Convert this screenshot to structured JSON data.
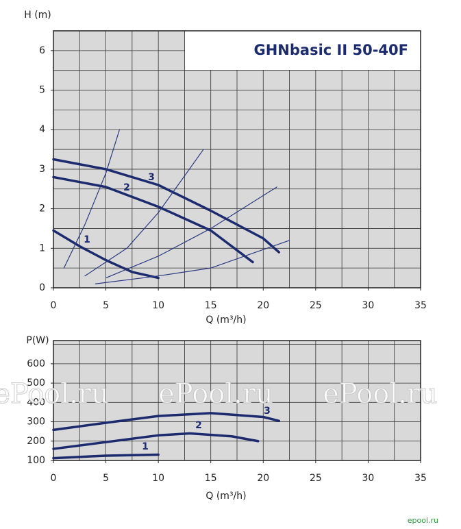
{
  "chart_data": [
    {
      "type": "line",
      "title": "GHNbasic II 50-40F",
      "x_label": "Q (m³/h)",
      "y_label": "H (m)",
      "xlim": [
        0,
        35
      ],
      "ylim": [
        0,
        6.5
      ],
      "xticks": [
        0,
        5,
        10,
        15,
        20,
        25,
        30,
        35
      ],
      "yticks": [
        0,
        1,
        2,
        3,
        4,
        5,
        6
      ],
      "grid": true,
      "xgrid": [
        0,
        2.5,
        5,
        7.5,
        10,
        12.5,
        15,
        17.5,
        20,
        22.5,
        25,
        27.5,
        30,
        32.5,
        35
      ],
      "ygrid": [
        0,
        0.5,
        1,
        1.5,
        2,
        2.5,
        3,
        3.5,
        4,
        4.5,
        5,
        5.5,
        6,
        6.5
      ],
      "series": [
        {
          "name": "3",
          "color": "#1c2a6e",
          "x": [
            0,
            5,
            10,
            15,
            20,
            21.5
          ],
          "values": [
            3.25,
            3.0,
            2.6,
            1.95,
            1.25,
            0.9
          ]
        },
        {
          "name": "2",
          "color": "#1c2a6e",
          "x": [
            0,
            5,
            10,
            15,
            19
          ],
          "values": [
            2.8,
            2.55,
            2.05,
            1.45,
            0.65
          ]
        },
        {
          "name": "1",
          "color": "#1c2a6e",
          "x": [
            0,
            2.5,
            5,
            7.5,
            10
          ],
          "values": [
            1.45,
            1.05,
            0.7,
            0.4,
            0.25
          ]
        },
        {
          "color": "#2a3a80",
          "x": [
            1,
            3,
            5,
            6.3
          ],
          "values": [
            0.5,
            1.6,
            2.9,
            4.0
          ]
        },
        {
          "color": "#2a3a80",
          "x": [
            3,
            7,
            10,
            14.3
          ],
          "values": [
            0.3,
            1.0,
            1.9,
            3.5
          ]
        },
        {
          "color": "#2a3a80",
          "x": [
            5,
            10,
            15,
            21.3
          ],
          "values": [
            0.25,
            0.8,
            1.5,
            2.55
          ]
        },
        {
          "color": "#2a3a80",
          "x": [
            4,
            10,
            15,
            22.5
          ],
          "values": [
            0.1,
            0.3,
            0.5,
            1.2
          ]
        }
      ]
    },
    {
      "type": "line",
      "x_label": "Q (m³/h)",
      "y_label": "P(W)",
      "xlim": [
        0,
        35
      ],
      "ylim": [
        100,
        720
      ],
      "xticks": [
        0,
        5,
        10,
        15,
        20,
        25,
        30,
        35
      ],
      "yticks": [
        100,
        200,
        300,
        400,
        500,
        600
      ],
      "grid": true,
      "xgrid": [
        0,
        2.5,
        5,
        7.5,
        10,
        12.5,
        15,
        17.5,
        20,
        22.5,
        25,
        27.5,
        30,
        32.5,
        35
      ],
      "ygrid": [
        100,
        200,
        300,
        400,
        500,
        600,
        700
      ],
      "series": [
        {
          "name": "3",
          "color": "#1c2a6e",
          "x": [
            0,
            5,
            10,
            15,
            20,
            21.5
          ],
          "values": [
            258,
            295,
            330,
            345,
            325,
            305
          ]
        },
        {
          "name": "2",
          "color": "#1c2a6e",
          "x": [
            0,
            5,
            10,
            13,
            17,
            19.5
          ],
          "values": [
            160,
            195,
            230,
            240,
            225,
            200
          ]
        },
        {
          "name": "1",
          "color": "#1c2a6e",
          "x": [
            0,
            5,
            10
          ],
          "values": [
            112,
            125,
            130
          ]
        }
      ],
      "watermarks": [
        "ePool.ru",
        "ePool.ru",
        "ePool.ru"
      ]
    }
  ],
  "footer": "epool.ru"
}
